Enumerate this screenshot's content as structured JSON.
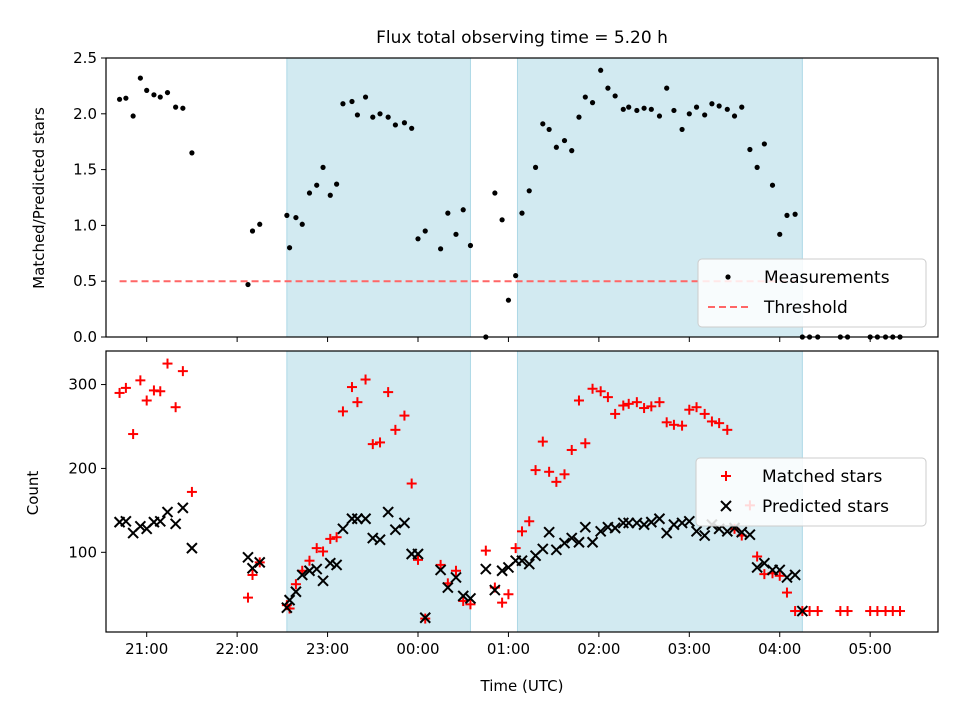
{
  "title": "Flux total observing time = 5.20 h",
  "colors": {
    "band": "#add8e6",
    "matched": "#ff0000",
    "predicted": "#000000",
    "threshold": "#ff6666",
    "measurement": "#000000"
  },
  "chart_data": [
    {
      "type": "scatter",
      "ylabel": "Matched/Predicted stars",
      "ylim": [
        0,
        2.5
      ],
      "yticks": [
        0.0,
        0.5,
        1.0,
        1.5,
        2.0,
        2.5
      ],
      "ytick_labels": [
        "0.0",
        "0.5",
        "1.0",
        "1.5",
        "2.0",
        "2.5"
      ],
      "xlim": [
        20.55,
        29.75
      ],
      "xticks": [
        21,
        22,
        23,
        24,
        25,
        26,
        27,
        28,
        29
      ],
      "shaded_bands": [
        [
          22.55,
          24.58
        ],
        [
          25.1,
          28.25
        ]
      ],
      "threshold": {
        "name": "Threshold",
        "y": 0.5,
        "x": [
          20.7,
          28.25
        ]
      },
      "legend": {
        "position": "lower-right",
        "entries": [
          "Measurements",
          "Threshold"
        ]
      },
      "series": [
        {
          "name": "Measurements",
          "x": [
            20.7,
            20.77,
            20.85,
            20.93,
            21.0,
            21.08,
            21.15,
            21.23,
            21.32,
            21.4,
            21.5,
            22.12,
            22.17,
            22.25,
            22.55,
            22.58,
            22.65,
            22.72,
            22.8,
            22.88,
            22.95,
            23.03,
            23.1,
            23.17,
            23.27,
            23.33,
            23.42,
            23.5,
            23.58,
            23.67,
            23.75,
            23.85,
            23.93,
            24.0,
            24.08,
            24.25,
            24.33,
            24.42,
            24.5,
            24.58,
            24.75,
            24.85,
            24.93,
            25.0,
            25.08,
            25.15,
            25.23,
            25.3,
            25.38,
            25.45,
            25.53,
            25.62,
            25.7,
            25.78,
            25.85,
            25.93,
            26.02,
            26.1,
            26.18,
            26.27,
            26.33,
            26.42,
            26.5,
            26.58,
            26.67,
            26.75,
            26.83,
            26.92,
            27.0,
            27.08,
            27.17,
            27.25,
            27.33,
            27.42,
            27.5,
            27.58,
            27.67,
            27.75,
            27.83,
            27.92,
            28.0,
            28.08,
            28.17,
            28.25,
            28.33,
            28.42,
            28.67,
            28.75,
            29.0,
            29.08,
            29.17,
            29.25,
            29.33
          ],
          "y": [
            2.13,
            2.14,
            1.98,
            2.32,
            2.21,
            2.17,
            2.15,
            2.19,
            2.06,
            2.05,
            1.65,
            0.47,
            0.95,
            1.01,
            1.09,
            0.8,
            1.07,
            1.01,
            1.29,
            1.36,
            1.52,
            1.27,
            1.37,
            2.09,
            2.11,
            1.99,
            2.15,
            1.97,
            2.0,
            1.97,
            1.9,
            1.92,
            1.87,
            0.88,
            0.95,
            0.79,
            1.11,
            0.92,
            1.14,
            0.82,
            0.0,
            1.29,
            1.05,
            0.33,
            0.55,
            1.11,
            1.31,
            1.52,
            1.91,
            1.86,
            1.7,
            1.76,
            1.67,
            1.97,
            2.15,
            2.1,
            2.39,
            2.23,
            2.16,
            2.04,
            2.06,
            2.03,
            2.05,
            2.04,
            1.98,
            2.23,
            2.03,
            1.86,
            2.0,
            2.06,
            1.99,
            2.09,
            2.07,
            2.04,
            1.98,
            2.06,
            1.68,
            1.52,
            1.73,
            1.36,
            0.92,
            1.09,
            1.1,
            0.0,
            0.0,
            0.0,
            0.0,
            0.0,
            0.0,
            0.0,
            0.0,
            0.0,
            0.0
          ]
        }
      ]
    },
    {
      "type": "scatter",
      "xlabel": "Time (UTC)",
      "ylabel": "Count",
      "ylim": [
        5,
        340
      ],
      "yticks": [
        100,
        200,
        300
      ],
      "ytick_labels": [
        "100",
        "200",
        "300"
      ],
      "xlim": [
        20.55,
        29.75
      ],
      "xticks": [
        21,
        22,
        23,
        24,
        25,
        26,
        27,
        28,
        29
      ],
      "xtick_labels": [
        "21:00",
        "22:00",
        "23:00",
        "00:00",
        "01:00",
        "02:00",
        "03:00",
        "04:00",
        "05:00"
      ],
      "shaded_bands": [
        [
          22.55,
          24.58
        ],
        [
          25.1,
          28.25
        ]
      ],
      "legend": {
        "position": "right",
        "entries": [
          "Matched stars",
          "Predicted stars"
        ]
      },
      "series": [
        {
          "name": "Matched stars",
          "x": [
            20.7,
            20.77,
            20.85,
            20.93,
            21.0,
            21.08,
            21.15,
            21.23,
            21.32,
            21.4,
            21.5,
            22.12,
            22.17,
            22.25,
            22.55,
            22.58,
            22.65,
            22.72,
            22.8,
            22.88,
            22.95,
            23.03,
            23.1,
            23.17,
            23.27,
            23.33,
            23.42,
            23.5,
            23.58,
            23.67,
            23.75,
            23.85,
            23.93,
            24.0,
            24.08,
            24.25,
            24.33,
            24.42,
            24.5,
            24.58,
            24.75,
            24.85,
            24.93,
            25.0,
            25.08,
            25.15,
            25.23,
            25.3,
            25.38,
            25.45,
            25.53,
            25.62,
            25.7,
            25.78,
            25.85,
            25.93,
            26.02,
            26.1,
            26.18,
            26.27,
            26.33,
            26.42,
            26.5,
            26.58,
            26.67,
            26.75,
            26.83,
            26.92,
            27.0,
            27.08,
            27.17,
            27.25,
            27.33,
            27.42,
            27.5,
            27.58,
            27.67,
            27.75,
            27.83,
            27.92,
            28.0,
            28.08,
            28.17,
            28.25,
            28.33,
            28.42,
            28.67,
            28.75,
            29.0,
            29.08,
            29.17,
            29.25,
            29.33
          ],
          "y": [
            290,
            296,
            241,
            305,
            281,
            293,
            292,
            325,
            273,
            316,
            172,
            46,
            73,
            88,
            37,
            33,
            62,
            78,
            90,
            105,
            101,
            116,
            118,
            268,
            297,
            279,
            306,
            229,
            231,
            291,
            246,
            263,
            182,
            91,
            21,
            85,
            63,
            78,
            42,
            38,
            102,
            58,
            40,
            50,
            105,
            125,
            137,
            198,
            232,
            196,
            184,
            193,
            222,
            281,
            230,
            295,
            292,
            285,
            265,
            275,
            277,
            279,
            272,
            274,
            279,
            255,
            252,
            251,
            270,
            273,
            265,
            256,
            254,
            246,
            128,
            120,
            156,
            95,
            74,
            75,
            72,
            52,
            30,
            30,
            30,
            30,
            30,
            30,
            30,
            30,
            30,
            30,
            30
          ]
        },
        {
          "name": "Predicted stars",
          "x": [
            20.7,
            20.77,
            20.85,
            20.93,
            21.0,
            21.08,
            21.15,
            21.23,
            21.32,
            21.4,
            21.5,
            22.12,
            22.17,
            22.25,
            22.55,
            22.58,
            22.65,
            22.72,
            22.8,
            22.88,
            22.95,
            23.03,
            23.1,
            23.17,
            23.27,
            23.33,
            23.42,
            23.5,
            23.58,
            23.67,
            23.75,
            23.85,
            23.93,
            24.0,
            24.08,
            24.25,
            24.33,
            24.42,
            24.5,
            24.58,
            24.75,
            24.85,
            24.93,
            25.0,
            25.08,
            25.15,
            25.23,
            25.3,
            25.38,
            25.45,
            25.53,
            25.62,
            25.7,
            25.78,
            25.85,
            25.93,
            26.02,
            26.1,
            26.18,
            26.27,
            26.33,
            26.42,
            26.5,
            26.58,
            26.67,
            26.75,
            26.83,
            26.92,
            27.0,
            27.08,
            27.17,
            27.25,
            27.33,
            27.42,
            27.5,
            27.58,
            27.67,
            27.75,
            27.83,
            27.92,
            28.0,
            28.08,
            28.17,
            28.25
          ],
          "y": [
            136,
            137,
            123,
            131,
            128,
            136,
            137,
            148,
            134,
            153,
            105,
            94,
            81,
            88,
            34,
            43,
            53,
            73,
            78,
            80,
            66,
            87,
            85,
            128,
            140,
            140,
            140,
            117,
            115,
            148,
            127,
            135,
            98,
            98,
            22,
            79,
            58,
            70,
            48,
            45,
            80,
            55,
            78,
            82,
            90,
            90,
            86,
            96,
            104,
            124,
            103,
            111,
            117,
            112,
            130,
            112,
            125,
            130,
            129,
            135,
            135,
            135,
            133,
            136,
            140,
            123,
            133,
            135,
            137,
            125,
            120,
            133,
            128,
            125,
            129,
            124,
            121,
            82,
            87,
            79,
            79,
            70,
            73,
            30
          ]
        }
      ]
    }
  ]
}
